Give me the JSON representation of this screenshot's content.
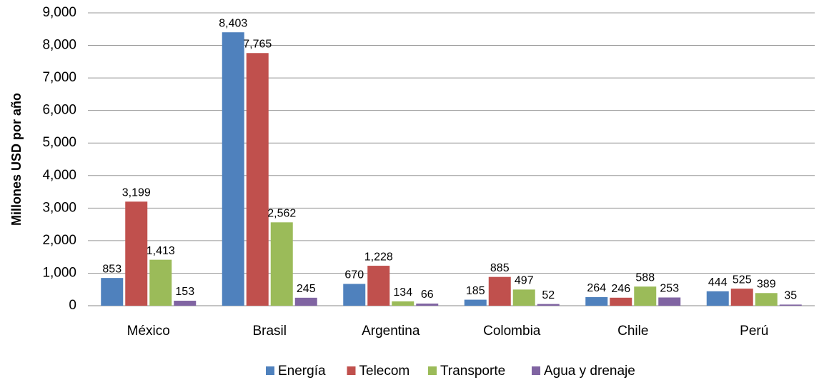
{
  "chart_data": {
    "type": "bar",
    "y_label": "Millones USD por año",
    "categories": [
      "México",
      "Brasil",
      "Argentina",
      "Colombia",
      "Chile",
      "Perú"
    ],
    "series": [
      {
        "name": "Energía",
        "color": "#4f81bd",
        "values": [
          853,
          8403,
          670,
          185,
          264,
          444
        ],
        "value_labels": [
          "853",
          "8,403",
          "670",
          "185",
          "264",
          "444"
        ]
      },
      {
        "name": "Telecom",
        "color": "#c0504d",
        "values": [
          3199,
          7765,
          1228,
          885,
          246,
          525
        ],
        "value_labels": [
          "3,199",
          "7,765",
          "1,228",
          "885",
          "246",
          "525"
        ]
      },
      {
        "name": "Transporte",
        "color": "#9bbb59",
        "values": [
          1413,
          2562,
          134,
          497,
          588,
          389
        ],
        "value_labels": [
          "1,413",
          "2,562",
          "134",
          "497",
          "588",
          "389"
        ]
      },
      {
        "name": "Agua y drenaje",
        "color": "#8064a2",
        "values": [
          153,
          245,
          66,
          52,
          253,
          35
        ],
        "value_labels": [
          "153",
          "245",
          "66",
          "52",
          "253",
          "35"
        ]
      }
    ],
    "ylim": [
      0,
      9000
    ],
    "yticks": [
      0,
      {
        "value": 1000,
        "label": "1,000"
      },
      {
        "value": 2000,
        "label": "2,000"
      },
      {
        "value": 3000,
        "label": "3,000"
      },
      {
        "value": 4000,
        "label": "4,000"
      },
      {
        "value": 5000,
        "label": "5,000"
      },
      {
        "value": 6000,
        "label": "6,000"
      },
      {
        "value": 7000,
        "label": "7,000"
      },
      {
        "value": 8000,
        "label": "8,000"
      },
      {
        "value": 9000,
        "label": "9,000"
      }
    ],
    "grid": true,
    "legend": "bottom"
  }
}
